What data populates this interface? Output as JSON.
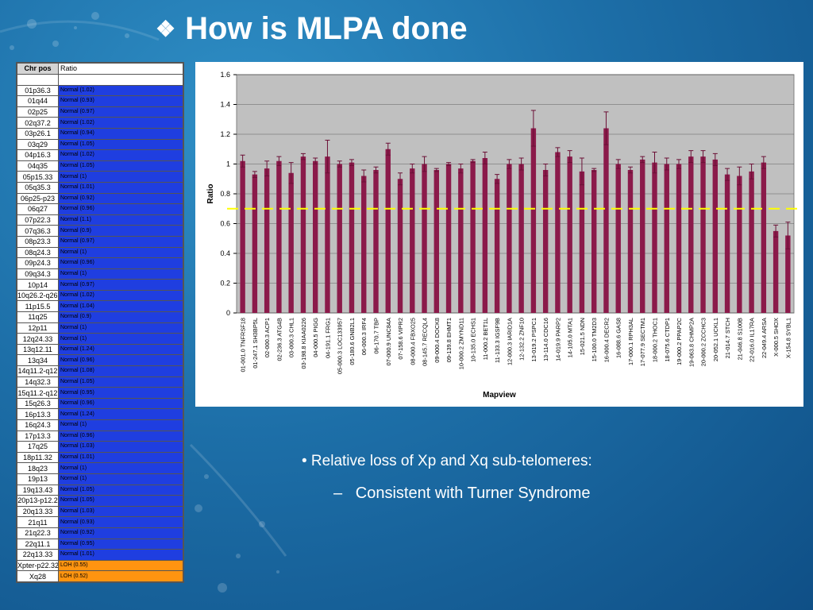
{
  "slide": {
    "title_bullet": "❖",
    "title": "How is MLPA done",
    "bullet1": "• Relative loss of Xp and Xq sub-telomeres:",
    "bullet2_dash": "–",
    "bullet2": "Consistent with Turner Syndrome"
  },
  "table": {
    "header_pos": "Chr pos",
    "header_ratio": "Ratio",
    "rows": [
      {
        "pos": "01p36.3",
        "ratio": "Normal (1.02)",
        "status": "normal"
      },
      {
        "pos": "01q44",
        "ratio": "Normal (0.93)",
        "status": "normal"
      },
      {
        "pos": "02p25",
        "ratio": "Normal (0.97)",
        "status": "normal"
      },
      {
        "pos": "02q37.2",
        "ratio": "Normal (1.02)",
        "status": "normal"
      },
      {
        "pos": "03p26.1",
        "ratio": "Normal (0.94)",
        "status": "normal"
      },
      {
        "pos": "03q29",
        "ratio": "Normal (1.05)",
        "status": "normal"
      },
      {
        "pos": "04p16.3",
        "ratio": "Normal (1.02)",
        "status": "normal"
      },
      {
        "pos": "04q35",
        "ratio": "Normal (1.05)",
        "status": "normal"
      },
      {
        "pos": "05p15.33",
        "ratio": "Normal (1)",
        "status": "normal"
      },
      {
        "pos": "05q35.3",
        "ratio": "Normal (1.01)",
        "status": "normal"
      },
      {
        "pos": "06p25-p23",
        "ratio": "Normal (0.92)",
        "status": "normal"
      },
      {
        "pos": "06q27",
        "ratio": "Normal (0.96)",
        "status": "normal"
      },
      {
        "pos": "07p22.3",
        "ratio": "Normal (1.1)",
        "status": "normal"
      },
      {
        "pos": "07q36.3",
        "ratio": "Normal (0.9)",
        "status": "normal"
      },
      {
        "pos": "08p23.3",
        "ratio": "Normal (0.97)",
        "status": "normal"
      },
      {
        "pos": "08q24.3",
        "ratio": "Normal (1)",
        "status": "normal"
      },
      {
        "pos": "09p24.3",
        "ratio": "Normal (0.96)",
        "status": "normal"
      },
      {
        "pos": "09q34.3",
        "ratio": "Normal (1)",
        "status": "normal"
      },
      {
        "pos": "10p14",
        "ratio": "Normal (0.97)",
        "status": "normal"
      },
      {
        "pos": "10q26.2-q26.3",
        "ratio": "Normal (1.02)",
        "status": "normal"
      },
      {
        "pos": "11p15.5",
        "ratio": "Normal (1.04)",
        "status": "normal"
      },
      {
        "pos": "11q25",
        "ratio": "Normal (0.9)",
        "status": "normal"
      },
      {
        "pos": "12p11",
        "ratio": "Normal (1)",
        "status": "normal"
      },
      {
        "pos": "12q24.33",
        "ratio": "Normal (1)",
        "status": "normal"
      },
      {
        "pos": "13q12.11",
        "ratio": "Normal (1.24)",
        "status": "normal"
      },
      {
        "pos": "13q34",
        "ratio": "Normal (0.96)",
        "status": "normal"
      },
      {
        "pos": "14q11.2-q12",
        "ratio": "Normal (1.08)",
        "status": "normal"
      },
      {
        "pos": "14q32.3",
        "ratio": "Normal (1.05)",
        "status": "normal"
      },
      {
        "pos": "15q11.2-q12",
        "ratio": "Normal (0.95)",
        "status": "normal"
      },
      {
        "pos": "15q26.3",
        "ratio": "Normal (0.96)",
        "status": "normal"
      },
      {
        "pos": "16p13.3",
        "ratio": "Normal (1.24)",
        "status": "normal"
      },
      {
        "pos": "16q24.3",
        "ratio": "Normal (1)",
        "status": "normal"
      },
      {
        "pos": "17p13.3",
        "ratio": "Normal (0.96)",
        "status": "normal"
      },
      {
        "pos": "17q25",
        "ratio": "Normal (1.03)",
        "status": "normal"
      },
      {
        "pos": "18p11.32",
        "ratio": "Normal (1.01)",
        "status": "normal"
      },
      {
        "pos": "18q23",
        "ratio": "Normal (1)",
        "status": "normal"
      },
      {
        "pos": "19p13",
        "ratio": "Normal (1)",
        "status": "normal"
      },
      {
        "pos": "19q13.43",
        "ratio": "Normal (1.05)",
        "status": "normal"
      },
      {
        "pos": "20p13-p12.2",
        "ratio": "Normal (1.05)",
        "status": "normal"
      },
      {
        "pos": "20q13.33",
        "ratio": "Normal (1.03)",
        "status": "normal"
      },
      {
        "pos": "21q11",
        "ratio": "Normal (0.93)",
        "status": "normal"
      },
      {
        "pos": "21q22.3",
        "ratio": "Normal (0.92)",
        "status": "normal"
      },
      {
        "pos": "22q11.1",
        "ratio": "Normal (0.95)",
        "status": "normal"
      },
      {
        "pos": "22q13.33",
        "ratio": "Normal (1.01)",
        "status": "normal"
      },
      {
        "pos": "Xpter-p22.32",
        "ratio": "LOH (0.55)",
        "status": "loh"
      },
      {
        "pos": "Xq28",
        "ratio": "LOH (0.52)",
        "status": "loh"
      }
    ]
  },
  "colors": {
    "normal_cell": "#1f3ee0",
    "loh_cell": "#ff9410",
    "bar": "#8b1a4a",
    "plot_bg": "#c0c0c0",
    "threshold": "#ffff00"
  },
  "chart_data": {
    "type": "bar",
    "title": "",
    "xlabel": "Mapview",
    "ylabel": "Ratio",
    "ylim": [
      0,
      1.6
    ],
    "yticks": [
      "0",
      "0.2",
      "0.4",
      "0.6",
      "0.8",
      "1",
      "1.2",
      "1.4",
      "1.6"
    ],
    "grid": true,
    "threshold_line": 0.7,
    "categories": [
      "01-001.0 TNFRSF18",
      "01-247.1 SH3BP5L",
      "02-000.3 ACP1",
      "02-236.3 ATG4B",
      "03-000.3 CHL1",
      "03-198.8 KIAA0226",
      "04-000.5 PIGG",
      "04-191.1 FRG1",
      "05-000.3 LOC133957",
      "05-180.6 GNB2L1",
      "06-000.3 IRF4",
      "06-170.7 TBP",
      "07-000.9 UNC84A",
      "07-158.6 VIPR2",
      "08-000.4 FBXO25",
      "08-145.7 RECQL4",
      "09-000.4 DOCK8",
      "09-139.8 EHMT1",
      "10-000.2 ZMYND11",
      "10-135.0 ECHS1",
      "11-000.2 BET1L",
      "11-133.3 IGSF9B",
      "12-000.3 IARID1A",
      "12-132.2 ZNF10",
      "13-019.2 PSPC1",
      "13-114.0 CDC16",
      "14-019.9 PARP2",
      "14-105.0 MTA1",
      "15-021.5 NDN",
      "15-100.0 TM2D3",
      "16-000.4 DECR2",
      "16-088.6 GAS8",
      "17-000.1 RPH3AL",
      "17-077.9 SECTM1",
      "18-000.2 THOC1",
      "18-075.6 CTDP1",
      "19-000.2 PPAP2C",
      "19-063.8 CHMP2A",
      "20-000.2 ZCCHC3",
      "20-052.1 UCKL1",
      "21-014.7 STCH",
      "21-046.8 S100B",
      "22-016.0 IL17RA",
      "22-049.4 ARSA",
      "X-000.5 SHOX",
      "X-154.8 SYBL1"
    ],
    "values": [
      1.02,
      0.93,
      0.97,
      1.02,
      0.94,
      1.05,
      1.02,
      1.05,
      1.0,
      1.01,
      0.92,
      0.96,
      1.1,
      0.9,
      0.97,
      1.0,
      0.96,
      1.0,
      0.97,
      1.02,
      1.04,
      0.9,
      1.0,
      1.0,
      1.24,
      0.96,
      1.08,
      1.05,
      0.95,
      0.96,
      1.24,
      1.0,
      0.96,
      1.03,
      1.01,
      1.0,
      1.0,
      1.05,
      1.05,
      1.03,
      0.93,
      0.92,
      0.95,
      1.01,
      0.55,
      0.52
    ],
    "errors": [
      0.04,
      0.02,
      0.05,
      0.03,
      0.07,
      0.02,
      0.02,
      0.11,
      0.02,
      0.02,
      0.04,
      0.02,
      0.04,
      0.04,
      0.03,
      0.05,
      0.01,
      0.01,
      0.03,
      0.01,
      0.04,
      0.03,
      0.03,
      0.04,
      0.12,
      0.04,
      0.03,
      0.04,
      0.09,
      0.01,
      0.11,
      0.03,
      0.02,
      0.02,
      0.07,
      0.04,
      0.03,
      0.04,
      0.04,
      0.04,
      0.04,
      0.06,
      0.05,
      0.04,
      0.04,
      0.09
    ]
  }
}
